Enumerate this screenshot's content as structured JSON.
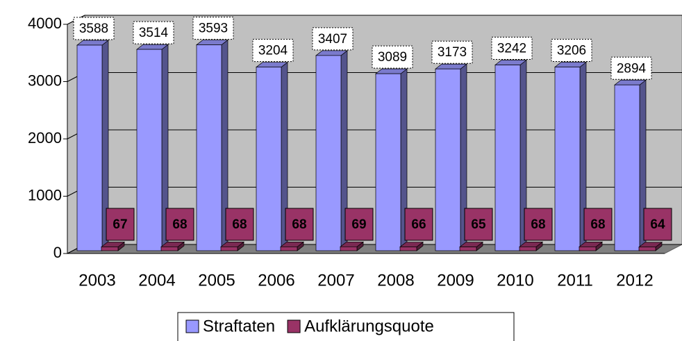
{
  "chart_data": {
    "type": "bar3d",
    "categories": [
      "2003",
      "2004",
      "2005",
      "2006",
      "2007",
      "2008",
      "2009",
      "2010",
      "2011",
      "2012"
    ],
    "series": [
      {
        "name": "Straftaten",
        "color": "#9999ff",
        "values": [
          3588,
          3514,
          3593,
          3204,
          3407,
          3089,
          3173,
          3242,
          3206,
          2894
        ]
      },
      {
        "name": "Aufklärungsquote",
        "color": "#993366",
        "values": [
          67,
          68,
          68,
          68,
          69,
          66,
          65,
          68,
          68,
          64
        ]
      }
    ],
    "ylim": [
      0,
      4000
    ],
    "yticks": [
      0,
      1000,
      2000,
      3000,
      4000
    ],
    "grid": true,
    "legend": "bottom"
  }
}
